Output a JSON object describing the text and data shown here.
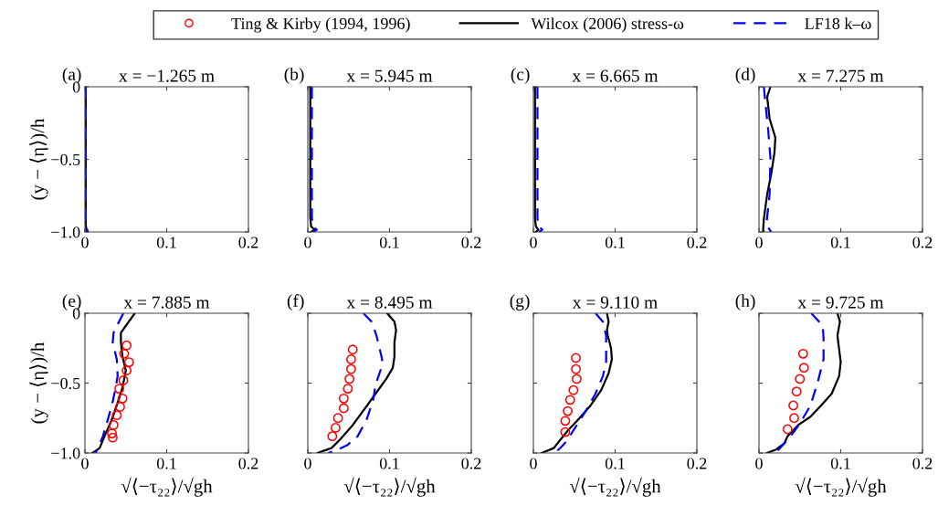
{
  "chart_data": [
    {
      "type": "line",
      "title": "x = −1.265 m",
      "annotations": [
        "(a)"
      ],
      "ylabel": "(y − ⟨η⟩)/h",
      "xlim": [
        0,
        0.2
      ],
      "ylim": [
        -1,
        0
      ],
      "xticks": [
        0,
        0.1,
        0.2
      ],
      "yticks": [
        {
          "value": -1,
          "label": "−1.0"
        },
        {
          "value": -0.5,
          "label": "−0.5"
        },
        0
      ],
      "series": [
        {
          "color": "#000000",
          "line_style": "solid",
          "x": [
            0.001,
            0.001,
            0.001,
            0.002,
            0.003
          ],
          "values": [
            0,
            -0.5,
            -0.95,
            -0.99,
            -1.0
          ]
        },
        {
          "color": "#0000ff",
          "line_style": "dashed",
          "x": [
            0.001,
            0.001,
            0.001,
            0.003,
            0.004
          ],
          "values": [
            0,
            -0.5,
            -0.95,
            -0.99,
            -1.0
          ]
        }
      ]
    },
    {
      "type": "line",
      "title": "x = 5.945 m",
      "annotations": [
        "(b)"
      ],
      "xlim": [
        0,
        0.2
      ],
      "ylim": [
        -1,
        0
      ],
      "xticks": [
        0,
        0.1,
        0.2
      ],
      "yticks": [
        {
          "value": -1,
          "label": null
        },
        {
          "value": -0.5,
          "label": null
        },
        {
          "value": 0,
          "label": null
        }
      ],
      "tick_labels": "x",
      "series": [
        {
          "color": "#000000",
          "line_style": "solid",
          "x": [
            0.003,
            0.003,
            0.003,
            0.004,
            0.008,
            0.004
          ],
          "values": [
            0,
            -0.5,
            -0.9,
            -0.96,
            -0.985,
            -1.0
          ]
        },
        {
          "color": "#0000ff",
          "line_style": "dashed",
          "x": [
            0.005,
            0.005,
            0.005,
            0.006,
            0.011,
            0.007
          ],
          "values": [
            0,
            -0.5,
            -0.9,
            -0.96,
            -0.985,
            -1.0
          ]
        }
      ]
    },
    {
      "type": "line",
      "title": "x = 6.665 m",
      "annotations": [
        "(c)"
      ],
      "xlim": [
        0,
        0.2
      ],
      "ylim": [
        -1,
        0
      ],
      "xticks": [
        0,
        0.1,
        0.2
      ],
      "yticks": [
        {
          "value": -1,
          "label": null
        },
        {
          "value": -0.5,
          "label": null
        },
        {
          "value": 0,
          "label": null
        }
      ],
      "tick_labels": "x",
      "series": [
        {
          "color": "#000000",
          "line_style": "solid",
          "x": [
            0.002,
            0.002,
            0.002,
            0.003,
            0.006,
            0.003
          ],
          "values": [
            0,
            -0.5,
            -0.9,
            -0.96,
            -0.985,
            -1.0
          ]
        },
        {
          "color": "#0000ff",
          "line_style": "dashed",
          "x": [
            0.005,
            0.005,
            0.005,
            0.006,
            0.011,
            0.007
          ],
          "values": [
            0,
            -0.5,
            -0.9,
            -0.96,
            -0.985,
            -1.0
          ]
        }
      ]
    },
    {
      "type": "line",
      "title": "x = 7.275 m",
      "annotations": [
        "(d)"
      ],
      "xlim": [
        0,
        0.2
      ],
      "ylim": [
        -1,
        0
      ],
      "xticks": [
        0,
        0.1,
        0.2
      ],
      "yticks": [
        {
          "value": -1,
          "label": null
        },
        {
          "value": -0.5,
          "label": null
        },
        {
          "value": 0,
          "label": null
        }
      ],
      "tick_labels": "x",
      "series": [
        {
          "color": "#000000",
          "line_style": "solid",
          "x": [
            0.014,
            0.01,
            0.013,
            0.02,
            0.019,
            0.015,
            0.01,
            0.006,
            0.005,
            0.006
          ],
          "values": [
            0,
            -0.07,
            -0.22,
            -0.35,
            -0.45,
            -0.6,
            -0.74,
            -0.91,
            -0.99,
            -1.0
          ]
        },
        {
          "color": "#0000ff",
          "line_style": "dashed",
          "x": [
            0.006,
            0.008,
            0.011,
            0.014,
            0.013,
            0.009,
            0.015
          ],
          "values": [
            0,
            -0.12,
            -0.28,
            -0.49,
            -0.74,
            -0.95,
            -1.0
          ]
        }
      ]
    },
    {
      "type": "line",
      "title": "x = 7.885 m",
      "annotations": [
        "(e)"
      ],
      "ylabel": "(y − ⟨η⟩)/h",
      "xlabel": "√⟨−τ₂₂⟩/√gh",
      "xlim": [
        0,
        0.2
      ],
      "ylim": [
        -1,
        0
      ],
      "xticks": [
        0,
        0.1,
        0.2
      ],
      "yticks": [
        {
          "value": -1,
          "label": "−1.0"
        },
        {
          "value": -0.5,
          "label": "−0.5"
        },
        0
      ],
      "legend": "top",
      "series": [
        {
          "name": "Ting & Kirby (1994, 1996)",
          "type": "scatter",
          "color": "#ff0000",
          "marker": "circle",
          "x": [
            0.051,
            0.048,
            0.054,
            0.051,
            0.047,
            0.042,
            0.046,
            0.043,
            0.039,
            0.035,
            0.033,
            0.034
          ],
          "values": [
            -0.23,
            -0.29,
            -0.35,
            -0.41,
            -0.48,
            -0.54,
            -0.61,
            -0.67,
            -0.73,
            -0.8,
            -0.86,
            -0.89
          ]
        },
        {
          "name": "Wilcox (2006) stress-ω",
          "color": "#000000",
          "line_style": "solid",
          "x": [
            0.061,
            0.05,
            0.044,
            0.044,
            0.046,
            0.05,
            0.046,
            0.04,
            0.033,
            0.024,
            0.018,
            0.009
          ],
          "values": [
            0,
            -0.09,
            -0.14,
            -0.21,
            -0.31,
            -0.41,
            -0.53,
            -0.64,
            -0.76,
            -0.88,
            -0.965,
            -1.0
          ]
        },
        {
          "name": "LF18 k–ω",
          "color": "#0000ff",
          "line_style": "dashed",
          "x": [
            0.047,
            0.04,
            0.035,
            0.034,
            0.039,
            0.04,
            0.037,
            0.033,
            0.027,
            0.022,
            0.016,
            0.013
          ],
          "values": [
            0,
            -0.08,
            -0.14,
            -0.21,
            -0.33,
            -0.45,
            -0.55,
            -0.66,
            -0.78,
            -0.88,
            -0.965,
            -1.0
          ]
        }
      ]
    },
    {
      "type": "line",
      "title": "x = 8.495 m",
      "annotations": [
        "(f)"
      ],
      "xlabel": "√⟨−τ₂₂⟩/√gh",
      "xlim": [
        0,
        0.2
      ],
      "ylim": [
        -1,
        0
      ],
      "xticks": [
        0,
        0.1,
        0.2
      ],
      "yticks": [
        {
          "value": -1,
          "label": null
        },
        {
          "value": -0.5,
          "label": null
        },
        {
          "value": 0,
          "label": null
        }
      ],
      "tick_labels": "x",
      "series": [
        {
          "type": "scatter",
          "color": "#ff0000",
          "marker": "circle",
          "x": [
            0.055,
            0.053,
            0.053,
            0.051,
            0.049,
            0.044,
            0.044,
            0.037,
            0.034,
            0.03
          ],
          "values": [
            -0.26,
            -0.33,
            -0.4,
            -0.47,
            -0.54,
            -0.61,
            -0.68,
            -0.75,
            -0.82,
            -0.88
          ]
        },
        {
          "color": "#000000",
          "line_style": "solid",
          "x": [
            0.097,
            0.106,
            0.108,
            0.106,
            0.106,
            0.104,
            0.096,
            0.083,
            0.07,
            0.055,
            0.04,
            0.029,
            0.012
          ],
          "values": [
            0,
            -0.06,
            -0.12,
            -0.21,
            -0.31,
            -0.39,
            -0.47,
            -0.575,
            -0.68,
            -0.8,
            -0.9,
            -0.965,
            -1.0
          ]
        },
        {
          "color": "#0000ff",
          "line_style": "dashed",
          "x": [
            0.068,
            0.078,
            0.084,
            0.091,
            0.09,
            0.083,
            0.08,
            0.072,
            0.061,
            0.048,
            0.037,
            0.025
          ],
          "values": [
            0,
            -0.06,
            -0.16,
            -0.33,
            -0.39,
            -0.51,
            -0.62,
            -0.76,
            -0.88,
            -0.945,
            -0.975,
            -1.0
          ]
        }
      ]
    },
    {
      "type": "line",
      "title": "x = 9.110 m",
      "annotations": [
        "(g)"
      ],
      "xlabel": "√⟨−τ₂₂⟩/√gh",
      "xlim": [
        0,
        0.2
      ],
      "ylim": [
        -1,
        0
      ],
      "xticks": [
        0,
        0.1,
        0.2
      ],
      "yticks": [
        {
          "value": -1,
          "label": null
        },
        {
          "value": -0.5,
          "label": null
        },
        {
          "value": 0,
          "label": null
        }
      ],
      "tick_labels": "x",
      "series": [
        {
          "type": "scatter",
          "color": "#ff0000",
          "marker": "circle",
          "x": [
            0.052,
            0.052,
            0.053,
            0.049,
            0.045,
            0.042,
            0.039,
            0.039
          ],
          "values": [
            -0.32,
            -0.4,
            -0.47,
            -0.55,
            -0.62,
            -0.7,
            -0.77,
            -0.85
          ]
        },
        {
          "color": "#000000",
          "line_style": "solid",
          "x": [
            0.09,
            0.092,
            0.09,
            0.091,
            0.095,
            0.096,
            0.092,
            0.083,
            0.07,
            0.055,
            0.042,
            0.031,
            0.025,
            0.01
          ],
          "values": [
            0,
            -0.06,
            -0.12,
            -0.16,
            -0.25,
            -0.33,
            -0.43,
            -0.55,
            -0.66,
            -0.76,
            -0.84,
            -0.92,
            -0.965,
            -1.0
          ]
        },
        {
          "color": "#0000ff",
          "line_style": "dashed",
          "x": [
            0.076,
            0.085,
            0.089,
            0.089,
            0.085,
            0.076,
            0.064,
            0.051,
            0.04,
            0.031,
            0.022
          ],
          "values": [
            0,
            -0.06,
            -0.16,
            -0.35,
            -0.45,
            -0.575,
            -0.7,
            -0.82,
            -0.92,
            -0.975,
            -1.0
          ]
        }
      ]
    },
    {
      "type": "line",
      "title": "x = 9.725 m",
      "annotations": [
        "(h)"
      ],
      "xlabel": "√⟨−τ₂₂⟩/√gh",
      "xlim": [
        0,
        0.2
      ],
      "ylim": [
        -1,
        0
      ],
      "xticks": [
        0,
        0.1,
        0.2
      ],
      "yticks": [
        {
          "value": -1,
          "label": null
        },
        {
          "value": -0.5,
          "label": null
        },
        {
          "value": 0,
          "label": null
        }
      ],
      "tick_labels": "x",
      "series": [
        {
          "type": "scatter",
          "color": "#ff0000",
          "marker": "circle",
          "x": [
            0.054,
            0.055,
            0.05,
            0.046,
            0.042,
            0.043,
            0.035
          ],
          "values": [
            -0.29,
            -0.39,
            -0.47,
            -0.56,
            -0.66,
            -0.75,
            -0.83
          ]
        },
        {
          "color": "#000000",
          "line_style": "solid",
          "x": [
            0.096,
            0.099,
            0.096,
            0.097,
            0.1,
            0.098,
            0.089,
            0.076,
            0.063,
            0.048,
            0.035,
            0.031,
            0.021,
            0.01
          ],
          "values": [
            0,
            -0.06,
            -0.16,
            -0.21,
            -0.35,
            -0.45,
            -0.575,
            -0.66,
            -0.74,
            -0.8,
            -0.88,
            -0.93,
            -0.975,
            -1.0
          ]
        },
        {
          "color": "#0000ff",
          "line_style": "dashed",
          "x": [
            0.064,
            0.078,
            0.079,
            0.079,
            0.072,
            0.063,
            0.051,
            0.04,
            0.029,
            0.02
          ],
          "values": [
            0,
            -0.09,
            -0.18,
            -0.33,
            -0.49,
            -0.66,
            -0.78,
            -0.87,
            -0.945,
            -1.0
          ]
        }
      ]
    }
  ]
}
